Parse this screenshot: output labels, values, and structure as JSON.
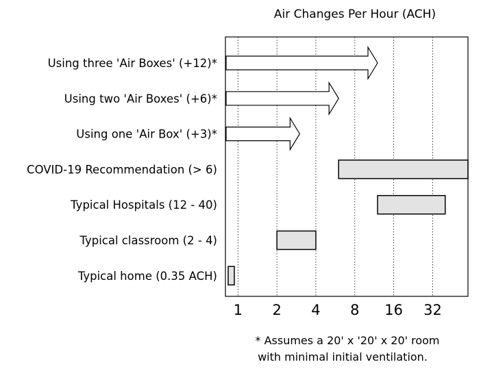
{
  "chart_data": {
    "type": "bar",
    "title": "Air Changes Per Hour (ACH)",
    "xlabel": "",
    "ylabel": "",
    "x_scale": "log2",
    "xlim": [
      0.8,
      60
    ],
    "x_ticks": [
      1,
      2,
      4,
      8,
      16,
      32
    ],
    "x_tick_labels": [
      "1",
      "2",
      "4",
      "8",
      "16",
      "32"
    ],
    "grid": "vertical-dotted",
    "legend": "none",
    "rows": [
      {
        "label": "Using three 'Air Boxes' (+12)*",
        "kind": "arrow",
        "start": 0.8,
        "end": 12
      },
      {
        "label": "Using two 'Air Boxes' (+6)*",
        "kind": "arrow",
        "start": 0.8,
        "end": 6
      },
      {
        "label": "Using one 'Air Box' (+3)*",
        "kind": "arrow",
        "start": 0.8,
        "end": 3
      },
      {
        "label": "COVID-19 Recommendation (> 6)",
        "kind": "range",
        "start": 6,
        "end": 60
      },
      {
        "label": "Typical Hospitals (12 - 40)",
        "kind": "range",
        "start": 12,
        "end": 40
      },
      {
        "label": "Typical classroom (2 - 4)",
        "kind": "range",
        "start": 2,
        "end": 4
      },
      {
        "label": "Typical home (0.35 ACH)",
        "kind": "range",
        "start": 0.8,
        "end": 0.9
      }
    ],
    "footnote": [
      "* Assumes a 20' x '20' x 20' room",
      "with minimal initial ventilation."
    ],
    "colors": {
      "range_fill": "#e3e3e3",
      "arrow_fill": "#ffffff",
      "stroke": "#000000",
      "grid": "#000000"
    }
  }
}
